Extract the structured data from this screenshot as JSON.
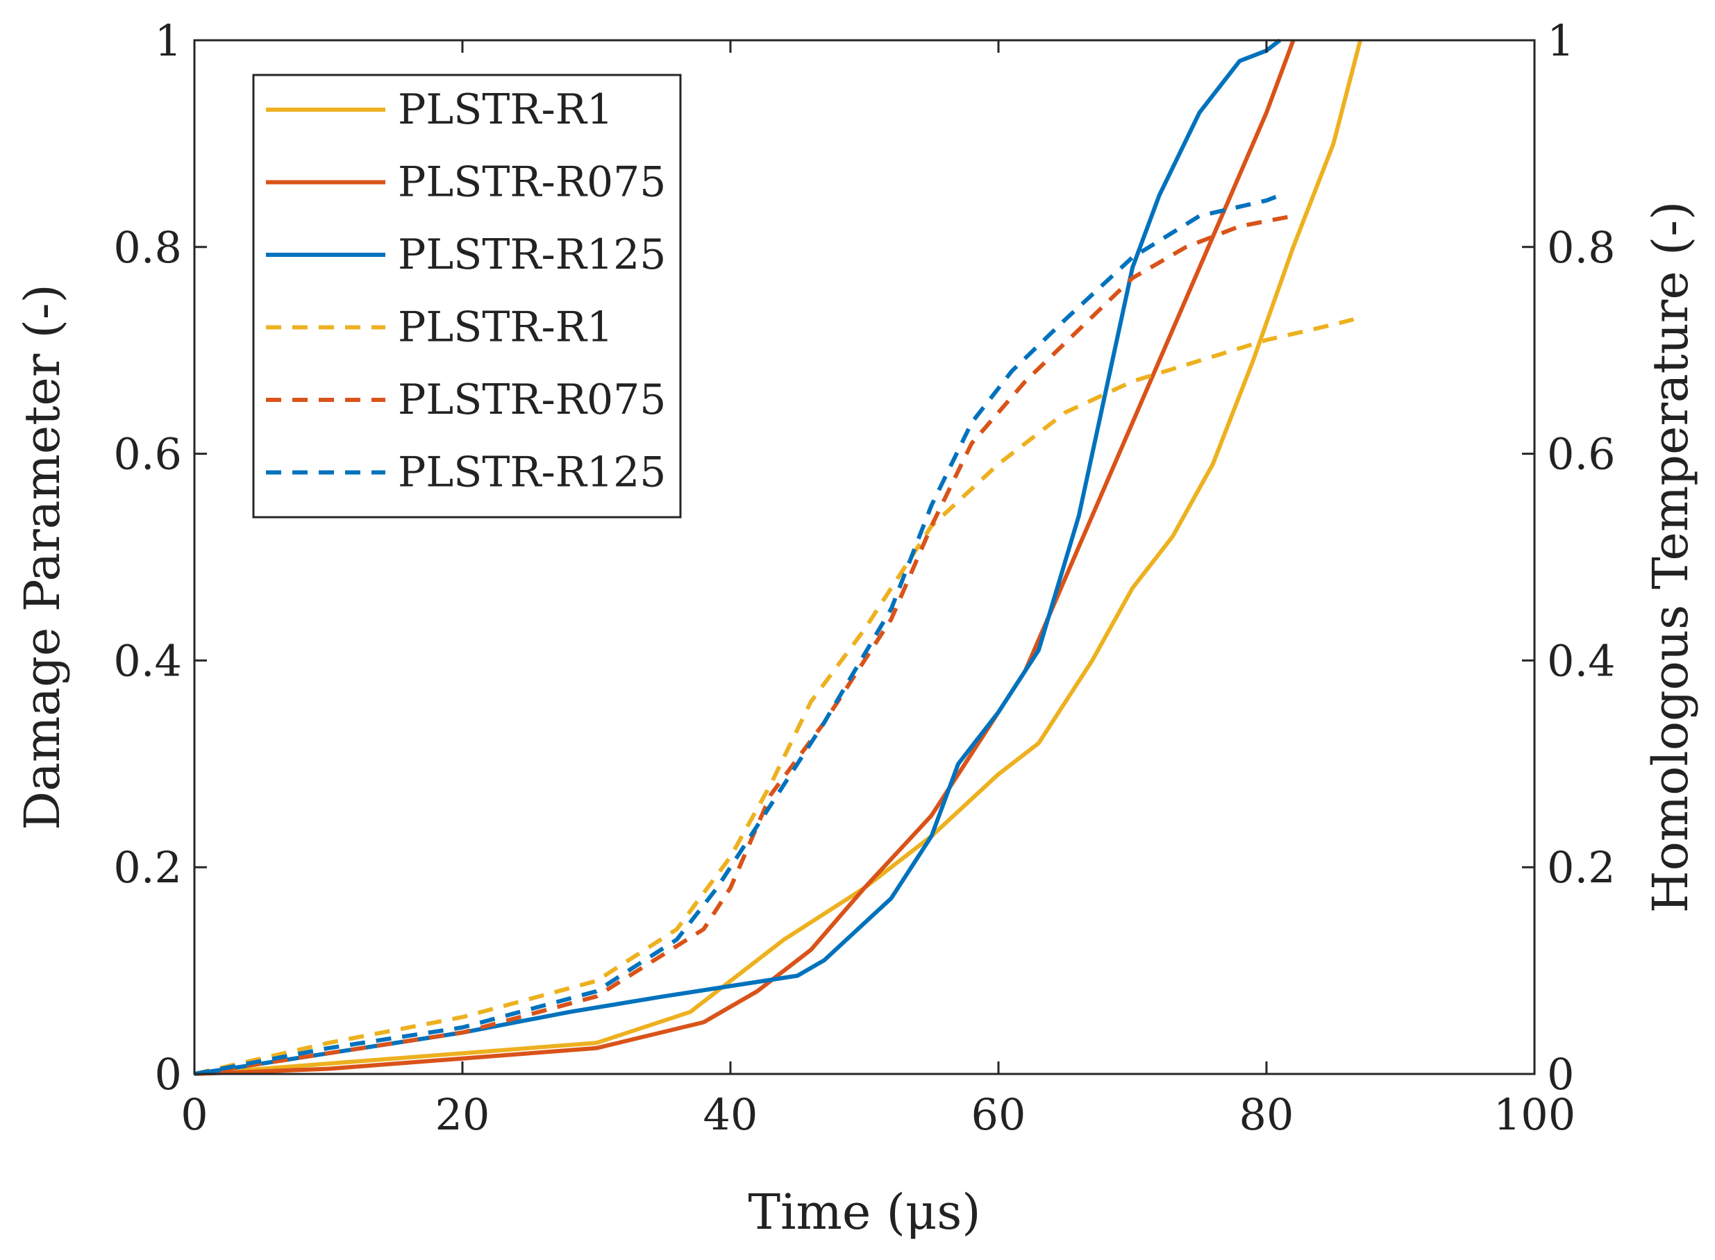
{
  "chart_data": {
    "type": "line",
    "title": "",
    "xlabel": "Time (μs)",
    "ylabel": "Damage Parameter (-)",
    "y2label": "Homologous Temperature (-)",
    "xlim": [
      0,
      100
    ],
    "ylim": [
      0,
      1
    ],
    "y2lim": [
      0,
      1
    ],
    "xticks": [
      "0",
      "20",
      "40",
      "60",
      "80",
      "100"
    ],
    "yticks": [
      "0",
      "0.2",
      "0.4",
      "0.6",
      "0.8",
      "1"
    ],
    "y2ticks": [
      "0",
      "0.2",
      "0.4",
      "0.6",
      "0.8",
      "1"
    ],
    "grid": false,
    "legend_position": "top-left",
    "series": [
      {
        "name": "PLSTR-R1",
        "axis": "left",
        "style": "solid",
        "color": "#EDB120",
        "x": [
          0,
          10,
          20,
          30,
          37,
          40,
          44,
          50,
          55,
          60,
          63,
          67,
          70,
          73,
          76,
          79,
          82,
          85,
          87
        ],
        "y": [
          0,
          0.01,
          0.02,
          0.03,
          0.06,
          0.09,
          0.13,
          0.18,
          0.23,
          0.29,
          0.32,
          0.4,
          0.47,
          0.52,
          0.59,
          0.69,
          0.8,
          0.9,
          1.0
        ]
      },
      {
        "name": "PLSTR-R075",
        "axis": "left",
        "style": "solid",
        "color": "#D95319",
        "x": [
          0,
          10,
          20,
          30,
          38,
          42,
          46,
          50,
          55,
          58,
          62,
          66,
          70,
          74,
          78,
          80,
          82
        ],
        "y": [
          0,
          0.005,
          0.015,
          0.025,
          0.05,
          0.08,
          0.12,
          0.18,
          0.25,
          0.31,
          0.39,
          0.51,
          0.63,
          0.75,
          0.87,
          0.93,
          1.0
        ]
      },
      {
        "name": "PLSTR-R125",
        "axis": "left",
        "style": "solid",
        "color": "#0072BD",
        "x": [
          0,
          10,
          20,
          28,
          35,
          40,
          45,
          47,
          52,
          55,
          57,
          60,
          63,
          66,
          68,
          70,
          72,
          75,
          78,
          80,
          81
        ],
        "y": [
          0,
          0.02,
          0.04,
          0.06,
          0.075,
          0.085,
          0.095,
          0.11,
          0.17,
          0.23,
          0.3,
          0.35,
          0.41,
          0.54,
          0.66,
          0.78,
          0.85,
          0.93,
          0.98,
          0.99,
          1.0
        ]
      },
      {
        "name": "PLSTR-R1",
        "axis": "right",
        "style": "dashed",
        "color": "#EDB120",
        "x": [
          0,
          10,
          20,
          30,
          36,
          40,
          43,
          46,
          50,
          55,
          60,
          65,
          70,
          75,
          80,
          85,
          86.5
        ],
        "y": [
          0,
          0.03,
          0.055,
          0.09,
          0.14,
          0.21,
          0.28,
          0.36,
          0.43,
          0.53,
          0.59,
          0.64,
          0.67,
          0.69,
          0.71,
          0.725,
          0.73
        ]
      },
      {
        "name": "PLSTR-R075",
        "axis": "right",
        "style": "dashed",
        "color": "#D95319",
        "x": [
          0,
          10,
          20,
          30,
          38,
          40,
          43,
          47,
          52,
          55,
          58,
          62,
          66,
          70,
          74,
          78,
          82
        ],
        "y": [
          0,
          0.02,
          0.04,
          0.075,
          0.14,
          0.18,
          0.27,
          0.34,
          0.44,
          0.53,
          0.61,
          0.67,
          0.72,
          0.77,
          0.8,
          0.82,
          0.83
        ]
      },
      {
        "name": "PLSTR-R125",
        "axis": "right",
        "style": "dashed",
        "color": "#0072BD",
        "x": [
          0,
          10,
          20,
          30,
          36,
          39,
          42,
          47,
          52,
          55,
          58,
          61,
          65,
          70,
          75,
          80,
          81
        ],
        "y": [
          0,
          0.025,
          0.045,
          0.08,
          0.13,
          0.18,
          0.24,
          0.34,
          0.45,
          0.55,
          0.63,
          0.68,
          0.73,
          0.79,
          0.83,
          0.845,
          0.85
        ]
      }
    ]
  }
}
